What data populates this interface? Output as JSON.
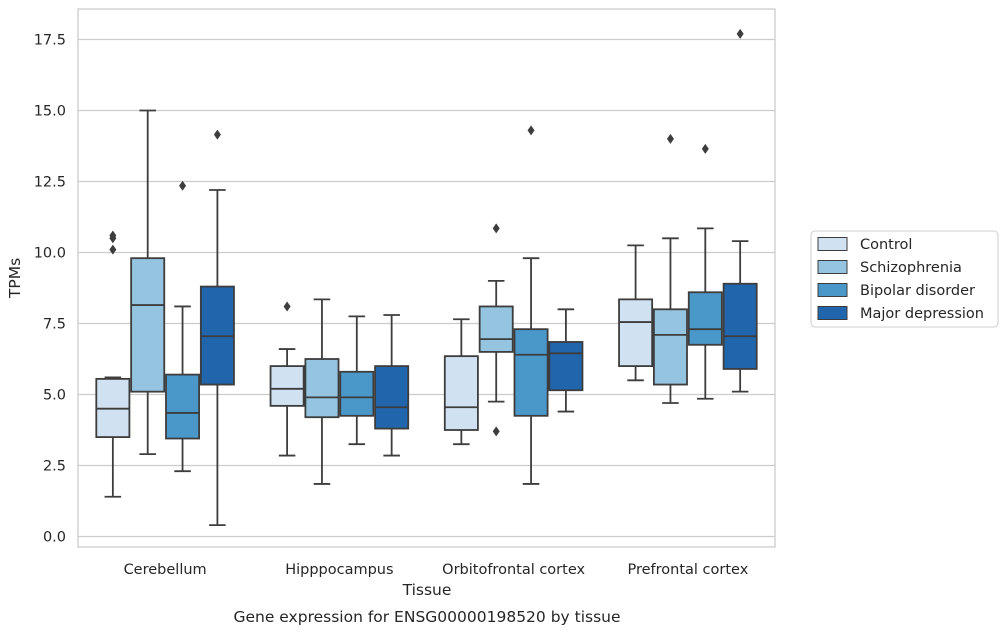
{
  "chart_data": {
    "type": "boxplot",
    "title": "",
    "caption": "Gene expression for ENSG00000198520 by tissue",
    "xlabel": "Tissue",
    "ylabel": "TPMs",
    "ylim": [
      -0.4,
      18.45
    ],
    "yticks": [
      0.0,
      2.5,
      5.0,
      7.5,
      10.0,
      12.5,
      15.0,
      17.5
    ],
    "ytick_labels": [
      "0.0",
      "2.5",
      "5.0",
      "7.5",
      "10.0",
      "12.5",
      "15.0",
      "17.5"
    ],
    "grid": "horizontal",
    "legend_position": "right",
    "categories": [
      "Cerebellum",
      "Hipppocampus",
      "Orbitofrontal cortex",
      "Prefrontal cortex"
    ],
    "series": [
      {
        "name": "Control",
        "color": "#d0e1f2",
        "boxes": [
          {
            "whislo": 1.4,
            "q1": 3.5,
            "med": 4.5,
            "q3": 5.55,
            "whishi": 5.6,
            "fliers": [
              10.6,
              10.5,
              10.1
            ]
          },
          {
            "whislo": 2.85,
            "q1": 4.6,
            "med": 5.2,
            "q3": 6.0,
            "whishi": 6.6,
            "fliers": [
              8.1
            ]
          },
          {
            "whislo": 3.25,
            "q1": 3.75,
            "med": 4.55,
            "q3": 6.35,
            "whishi": 7.65,
            "fliers": []
          },
          {
            "whislo": 5.5,
            "q1": 6.0,
            "med": 7.55,
            "q3": 8.35,
            "whishi": 10.25,
            "fliers": []
          }
        ]
      },
      {
        "name": "Schizophrenia",
        "color": "#94c4df",
        "boxes": [
          {
            "whislo": 2.9,
            "q1": 5.1,
            "med": 8.15,
            "q3": 9.8,
            "whishi": 15.0,
            "fliers": []
          },
          {
            "whislo": 1.85,
            "q1": 4.2,
            "med": 4.9,
            "q3": 6.25,
            "whishi": 8.35,
            "fliers": []
          },
          {
            "whislo": 4.75,
            "q1": 6.5,
            "med": 6.95,
            "q3": 8.1,
            "whishi": 9.0,
            "fliers": [
              10.85,
              3.7
            ]
          },
          {
            "whislo": 4.7,
            "q1": 5.35,
            "med": 7.1,
            "q3": 8.0,
            "whishi": 10.5,
            "fliers": [
              14.0
            ]
          }
        ]
      },
      {
        "name": "Bipolar disorder",
        "color": "#4a98c9",
        "boxes": [
          {
            "whislo": 2.3,
            "q1": 3.45,
            "med": 4.35,
            "q3": 5.7,
            "whishi": 8.1,
            "fliers": [
              12.35
            ]
          },
          {
            "whislo": 3.25,
            "q1": 4.25,
            "med": 4.9,
            "q3": 5.8,
            "whishi": 7.75,
            "fliers": []
          },
          {
            "whislo": 1.85,
            "q1": 4.25,
            "med": 6.4,
            "q3": 7.3,
            "whishi": 9.8,
            "fliers": [
              14.3
            ]
          },
          {
            "whislo": 4.85,
            "q1": 6.75,
            "med": 7.3,
            "q3": 8.6,
            "whishi": 10.85,
            "fliers": [
              13.65
            ]
          }
        ]
      },
      {
        "name": "Major depression",
        "color": "#2166ac",
        "boxes": [
          {
            "whislo": 0.4,
            "q1": 5.35,
            "med": 7.05,
            "q3": 8.8,
            "whishi": 12.2,
            "fliers": [
              14.15
            ]
          },
          {
            "whislo": 2.85,
            "q1": 3.8,
            "med": 4.55,
            "q3": 6.0,
            "whishi": 7.8,
            "fliers": []
          },
          {
            "whislo": 4.4,
            "q1": 5.15,
            "med": 6.45,
            "q3": 6.85,
            "whishi": 8.0,
            "fliers": []
          },
          {
            "whislo": 5.1,
            "q1": 5.9,
            "med": 7.05,
            "q3": 8.9,
            "whishi": 10.4,
            "fliers": [
              17.7
            ]
          }
        ]
      }
    ]
  },
  "colors": {
    "box_edge": "#3d3d3d",
    "grid": "#cccccc",
    "frame": "#cccccc",
    "text": "#262626"
  }
}
